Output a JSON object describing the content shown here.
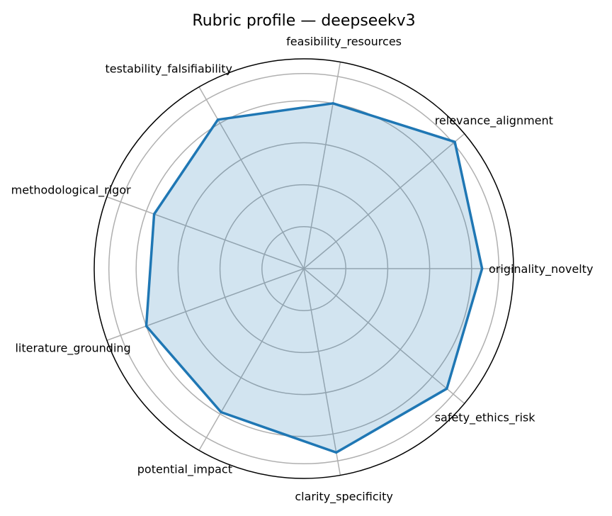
{
  "chart_data": {
    "type": "radar",
    "title": "Rubric profile — deepseekv3",
    "axes": [
      "originality_novelty",
      "relevance_alignment",
      "feasibility_resources",
      "testability_falsifiability",
      "methodological_rigor",
      "literature_grounding",
      "potential_impact",
      "clarity_specificity",
      "safety_ethics_risk"
    ],
    "series": [
      {
        "values": [
          0.85,
          0.94,
          0.8,
          0.82,
          0.76,
          0.8,
          0.79,
          0.89,
          0.89
        ]
      }
    ],
    "rlim": [
      0,
      1
    ],
    "grid": true,
    "colors": {
      "line": "#1f77b4",
      "fill": "#1f77b4",
      "grid": "#b0b0b0",
      "frame": "#000000"
    }
  }
}
